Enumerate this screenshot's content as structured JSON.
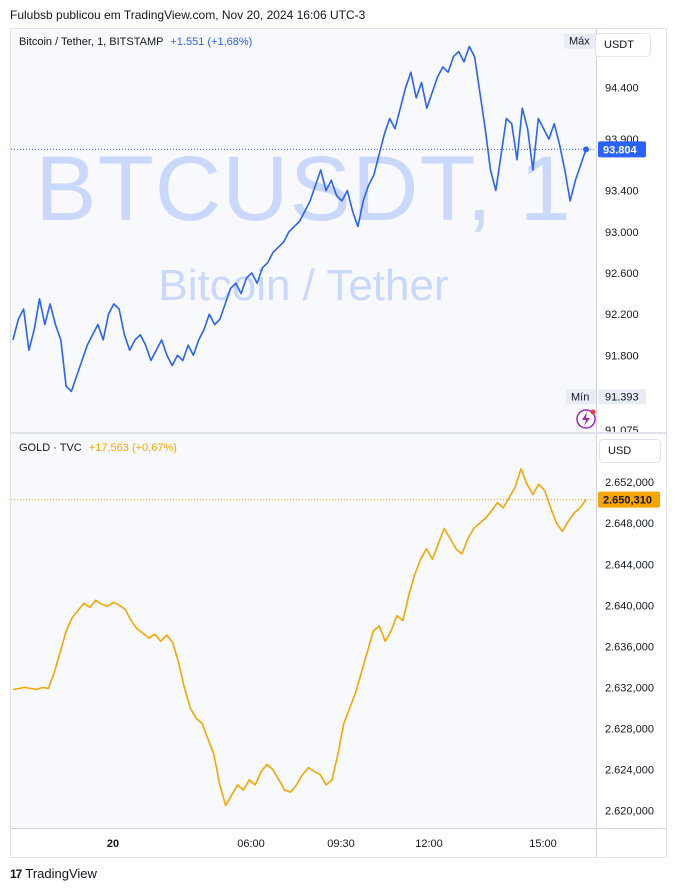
{
  "header": {
    "text": "Fulubsb publicou em TradingView.com, Nov 20, 2024 16:06 UTC-3"
  },
  "footer": {
    "brand": "TradingView",
    "logo_icon": "tradingview-logo-icon"
  },
  "top_pane": {
    "legend_symbol": "Bitcoin / Tether, 1, BITSTAMP",
    "legend_change": "+1.551 (+1,68%)",
    "watermark_symbol": "BTCUSDT, 1",
    "watermark_name": "Bitcoin / Tether",
    "currency": "USDT",
    "max_label": "Máx",
    "max_value": "94.846",
    "min_label": "Mín",
    "min_value": "91.393",
    "last_price": "93.804",
    "alert_icon": "lightning-alert-icon",
    "color": "#2962ff"
  },
  "bottom_pane": {
    "legend_symbol": "GOLD · TVC",
    "legend_change": "+17,563 (+0,67%)",
    "currency": "USD",
    "last_price": "2.650,310",
    "color": "#f7a600"
  },
  "chart_data": [
    {
      "type": "line",
      "title": "Bitcoin / Tether, 1, BITSTAMP",
      "series": [
        {
          "values": [
            91.95,
            92.15,
            92.25,
            91.85,
            92.05,
            92.35,
            92.1,
            92.3,
            92.1,
            91.95,
            91.5,
            91.45,
            91.6,
            91.75,
            91.9,
            92.0,
            92.1,
            91.95,
            92.2,
            92.3,
            92.25,
            92.0,
            91.85,
            91.95,
            92.0,
            91.9,
            91.75,
            91.85,
            91.95,
            91.8,
            91.7,
            91.8,
            91.75,
            91.9,
            91.8,
            91.95,
            92.05,
            92.2,
            92.1,
            92.15,
            92.3,
            92.45,
            92.5,
            92.4,
            92.55,
            92.6,
            92.5,
            92.65,
            92.7,
            92.8,
            92.85,
            92.9,
            93.0,
            93.05,
            93.1,
            93.2,
            93.3,
            93.45,
            93.6,
            93.4,
            93.5,
            93.35,
            93.3,
            93.4,
            93.2,
            93.05,
            93.3,
            93.45,
            93.55,
            93.75,
            93.95,
            94.1,
            94.0,
            94.2,
            94.4,
            94.55,
            94.3,
            94.45,
            94.2,
            94.35,
            94.5,
            94.6,
            94.55,
            94.7,
            94.75,
            94.65,
            94.8,
            94.7,
            94.35,
            94.0,
            93.6,
            93.4,
            93.75,
            94.1,
            94.05,
            93.7,
            94.2,
            94.0,
            93.6,
            94.1,
            94.0,
            93.9,
            94.05,
            93.85,
            93.6,
            93.3,
            93.5,
            93.65,
            93.8
          ]
        }
      ],
      "x_ticks": [
        "20",
        "06:00",
        "09:30",
        "12:00",
        "15:00"
      ],
      "y_ticks": [
        "94.400",
        "93.900",
        "93.400",
        "93.000",
        "92.600",
        "92.200",
        "91.800",
        "91.075"
      ],
      "ylim": [
        91.075,
        94.95
      ]
    },
    {
      "type": "line",
      "title": "GOLD · TVC",
      "series": [
        {
          "values": [
            2631.8,
            2631.9,
            2632.0,
            2631.9,
            2631.8,
            2632.0,
            2631.9,
            2633.5,
            2635.5,
            2637.5,
            2638.8,
            2639.5,
            2640.2,
            2639.8,
            2640.5,
            2640.1,
            2639.9,
            2640.3,
            2640.0,
            2639.6,
            2638.5,
            2637.7,
            2637.3,
            2636.8,
            2637.2,
            2636.5,
            2637.1,
            2636.4,
            2634.5,
            2632.0,
            2630.0,
            2629.0,
            2628.5,
            2627.0,
            2625.5,
            2622.5,
            2620.5,
            2621.5,
            2622.5,
            2622.0,
            2623.0,
            2622.5,
            2623.8,
            2624.5,
            2624.0,
            2623.0,
            2622.0,
            2621.8,
            2622.5,
            2623.5,
            2624.2,
            2623.8,
            2623.5,
            2622.5,
            2623.0,
            2625.5,
            2628.5,
            2630.0,
            2631.5,
            2633.5,
            2635.5,
            2637.5,
            2638.0,
            2636.5,
            2637.5,
            2639.0,
            2638.5,
            2641.0,
            2643.0,
            2644.5,
            2645.5,
            2644.5,
            2646.0,
            2647.5,
            2646.5,
            2645.5,
            2645.0,
            2646.5,
            2647.5,
            2648.0,
            2648.5,
            2649.2,
            2650.0,
            2649.5,
            2650.5,
            2651.5,
            2653.3,
            2651.8,
            2650.8,
            2651.8,
            2651.2,
            2649.5,
            2648.0,
            2647.2,
            2648.2,
            2649.0,
            2649.5,
            2650.3
          ]
        }
      ],
      "x_ticks": [
        "20",
        "06:00",
        "09:30",
        "12:00",
        "15:00"
      ],
      "y_ticks": [
        "2.652,000",
        "2.648,000",
        "2.644,000",
        "2.640,000",
        "2.636,000",
        "2.632,000",
        "2.628,000",
        "2.624,000",
        "2.620,000"
      ],
      "ylim": [
        2618.5,
        2656.5
      ]
    }
  ]
}
